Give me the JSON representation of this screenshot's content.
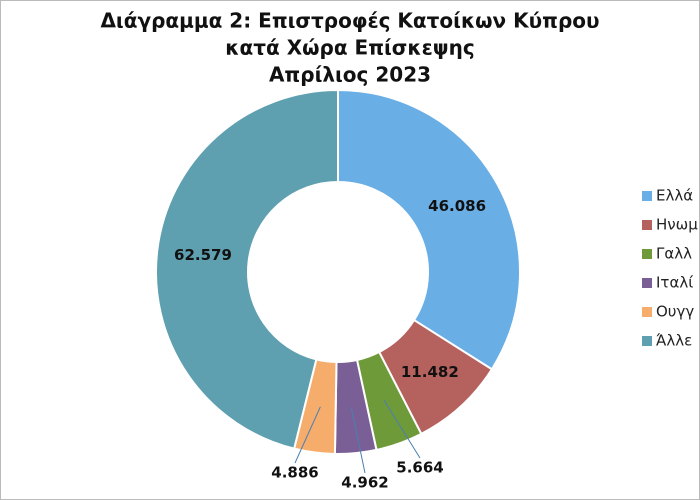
{
  "chart_data": {
    "type": "pie",
    "donut": true,
    "title": [
      "Διάγραμμα 2: Επιστροφές Κατοίκων Κύπρου",
      "κατά Χώρα Επίσκεψης",
      "Απρίλιος 2023"
    ],
    "categories": [
      "Ελλά",
      "Ηνωμ",
      "Γαλλ",
      "Ιταλί",
      "Ουγγ",
      "Άλλε"
    ],
    "values": [
      46086,
      11482,
      5664,
      4962,
      4886,
      62579
    ],
    "value_labels": [
      "46.086",
      "11.482",
      "5.664",
      "4.962",
      "4.886",
      "62.579"
    ],
    "colors": [
      "#6aaee6",
      "#b5615e",
      "#6f9a3a",
      "#7a5f96",
      "#f6ad6b",
      "#5fa0b0"
    ],
    "legend": "right"
  }
}
